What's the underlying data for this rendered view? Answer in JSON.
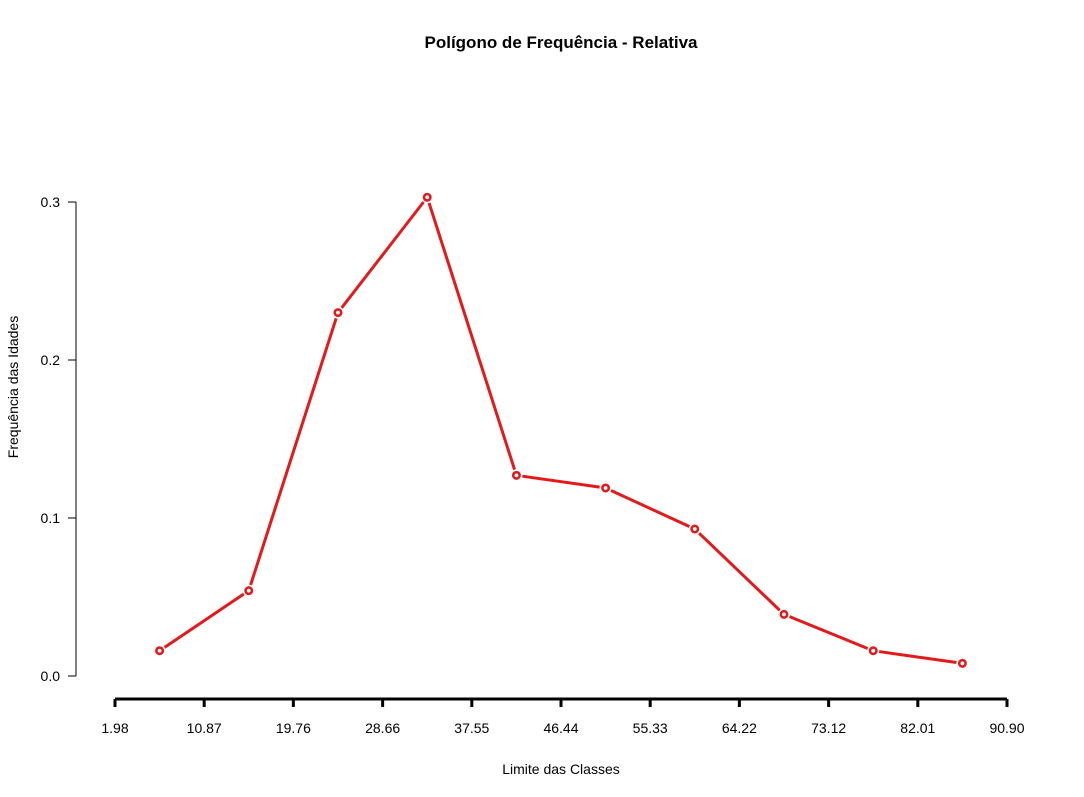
{
  "chart_data": {
    "type": "line",
    "title": "Polígono de Frequência - Relativa",
    "xlabel": "Limite das Classes",
    "ylabel": "Frequência das Idades",
    "x_ticks": [
      "1.98",
      "10.87",
      "19.76",
      "28.66",
      "37.55",
      "46.44",
      "55.33",
      "64.22",
      "73.12",
      "82.01",
      "90.90"
    ],
    "y_ticks": [
      "0.0",
      "0.1",
      "0.2",
      "0.3"
    ],
    "xlim": [
      1.98,
      90.9
    ],
    "ylim": [
      0,
      0.3
    ],
    "series": [
      {
        "color": "#e31a1c",
        "x": [
          6.425,
          15.315,
          24.21,
          33.105,
          41.995,
          50.885,
          59.775,
          68.67,
          77.565,
          86.455
        ],
        "y": [
          0.016,
          0.054,
          0.23,
          0.303,
          0.127,
          0.119,
          0.093,
          0.039,
          0.016,
          0.008
        ]
      }
    ],
    "grid": false
  }
}
